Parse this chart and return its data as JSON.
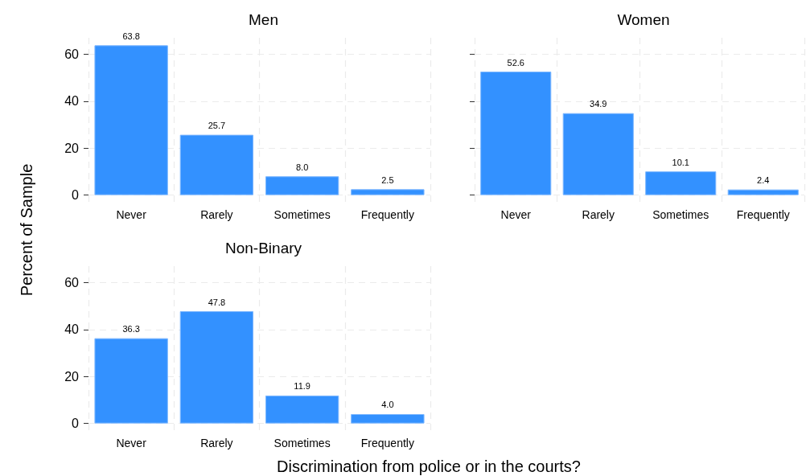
{
  "chart_data": [
    {
      "type": "bar",
      "title": "Men",
      "ylabel": "Percent of Sample",
      "categories": [
        "Never",
        "Rarely",
        "Sometimes",
        "Frequently"
      ],
      "values": [
        63.8,
        25.7,
        8.0,
        2.5
      ],
      "value_labels": [
        "63.8",
        "25.7",
        "8.0",
        "2.5"
      ],
      "color": "#3391ff",
      "ylim": [
        -3.2,
        67
      ],
      "yticks": [
        0,
        20,
        40,
        60
      ],
      "grid": true
    },
    {
      "type": "bar",
      "title": "Women",
      "categories": [
        "Never",
        "Rarely",
        "Sometimes",
        "Frequently"
      ],
      "values": [
        52.6,
        34.9,
        10.1,
        2.4
      ],
      "color": "#3391ff",
      "ylim": [
        -3.2,
        67
      ],
      "yticks": [
        0,
        20,
        40,
        60
      ],
      "grid": true,
      "data_labels": true,
      "tick_labels": "x"
    },
    {
      "type": "bar",
      "title": "Non-Binary",
      "xlabel": "Discrimination from police or in the courts?",
      "categories": [
        "Never",
        "Rarely",
        "Sometimes",
        "Frequently"
      ],
      "values": [
        36.3,
        47.8,
        11.9,
        4.0
      ],
      "value_labels": [
        "36.3",
        "47.8",
        "11.9",
        "4.0"
      ],
      "color": "#3391ff",
      "ylim": [
        -3.2,
        67
      ],
      "yticks": [
        0,
        20,
        40,
        60
      ],
      "grid": true
    }
  ]
}
